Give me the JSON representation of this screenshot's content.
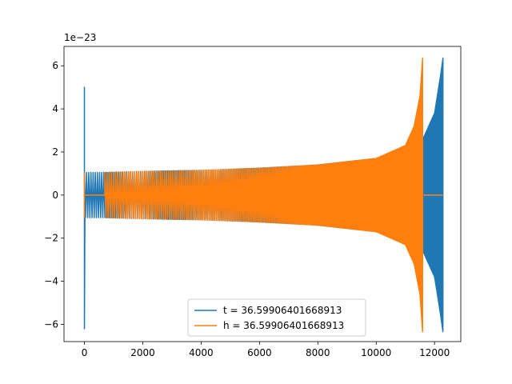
{
  "chart_data": {
    "type": "line",
    "title": "",
    "xlabel": "",
    "ylabel": "",
    "xlim": [
      -700,
      12900
    ],
    "ylim": [
      -6.8,
      6.9
    ],
    "y_offset_label": "1e−23",
    "x_ticks": [
      0,
      2000,
      4000,
      6000,
      8000,
      10000,
      12000
    ],
    "x_tick_labels": [
      "0",
      "2000",
      "4000",
      "6000",
      "8000",
      "10000",
      "12000"
    ],
    "y_ticks": [
      -6,
      -4,
      -2,
      0,
      2,
      4,
      6
    ],
    "y_tick_labels": [
      "−6",
      "−4",
      "−2",
      "0",
      "2",
      "4",
      "6"
    ],
    "grid": false,
    "legend_position": "bottom-center",
    "series": [
      {
        "name": "t = 36.59906401668913",
        "color": "#1f77b4",
        "waveform": "chirp",
        "envelope_x": [
          0,
          700,
          2000,
          4000,
          6000,
          8000,
          10000,
          11000,
          11600,
          12000,
          12200,
          12288
        ],
        "envelope_y": [
          1.05,
          1.05,
          1.1,
          1.15,
          1.25,
          1.4,
          1.7,
          2.1,
          2.6,
          3.8,
          5.5,
          6.35
        ],
        "end_x": 12288,
        "end_min": -5.55,
        "start_spike_max": 5.0,
        "start_spike_min": -6.2,
        "zero_tail": [
          12290,
          12290
        ]
      },
      {
        "name": "h = 36.59906401668913",
        "color": "#ff7f0e",
        "waveform": "chirp",
        "zero_gap": [
          0,
          700
        ],
        "envelope_x": [
          700,
          2000,
          4000,
          6000,
          8000,
          10000,
          11000,
          11300,
          11500,
          11590
        ],
        "envelope_y": [
          1.05,
          1.1,
          1.15,
          1.25,
          1.4,
          1.7,
          2.3,
          3.2,
          4.6,
          6.35
        ],
        "end_x": 11590,
        "end_min": -6.2,
        "start_spike_max": 1.05,
        "start_spike_min": -1.05,
        "zero_tail": [
          11590,
          12290
        ]
      }
    ]
  }
}
